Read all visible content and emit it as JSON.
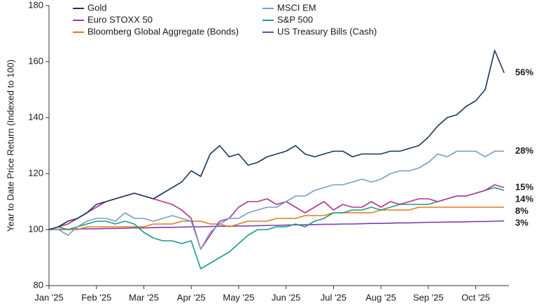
{
  "chart_data": {
    "type": "line",
    "y_label": "Year to Date Price Return (Indexed to 100)",
    "x": [
      0,
      0.2,
      0.4,
      0.6,
      0.8,
      1,
      1.2,
      1.4,
      1.6,
      1.8,
      2,
      2.2,
      2.4,
      2.6,
      2.8,
      3,
      3.2,
      3.4,
      3.6,
      3.8,
      4,
      4.2,
      4.4,
      4.6,
      4.8,
      5,
      5.2,
      5.4,
      5.6,
      5.8,
      6,
      6.2,
      6.4,
      6.6,
      6.8,
      7,
      7.2,
      7.4,
      7.6,
      7.8,
      8,
      8.2,
      8.4,
      8.6,
      8.8,
      9,
      9.2,
      9.4,
      9.6
    ],
    "xlim": [
      0,
      9.7
    ],
    "xticks": [
      {
        "value": 0,
        "label": "Jan '25"
      },
      {
        "value": 1,
        "label": "Feb '25"
      },
      {
        "value": 2,
        "label": "Mar '25"
      },
      {
        "value": 3,
        "label": "Apr '25"
      },
      {
        "value": 4,
        "label": "May '25"
      },
      {
        "value": 5,
        "label": "Jun '25"
      },
      {
        "value": 6,
        "label": "Jul '25"
      },
      {
        "value": 7,
        "label": "Aug '25"
      },
      {
        "value": 8,
        "label": "Sep '25"
      },
      {
        "value": 9,
        "label": "Oct '25"
      }
    ],
    "ylim": [
      80,
      180
    ],
    "yticks": [
      80,
      100,
      120,
      140,
      160,
      180
    ],
    "grid": false,
    "legend": "top",
    "series": [
      {
        "name": "Gold",
        "color": "#1b365d",
        "end_label": "56%",
        "values": [
          100,
          101,
          103,
          104,
          106,
          109,
          110,
          111,
          112,
          113,
          112,
          111,
          113,
          115,
          117,
          121,
          119,
          127,
          130,
          126,
          127,
          123,
          124,
          126,
          127,
          128,
          130,
          127,
          126,
          127,
          128,
          128,
          126,
          127,
          127,
          127,
          128,
          128,
          129,
          130,
          133,
          137,
          140,
          141,
          144,
          146,
          150,
          164,
          156
        ]
      },
      {
        "name": "MSCI EM",
        "color": "#7b9cc6",
        "end_label": "28%",
        "values": [
          100,
          100,
          98,
          101,
          103,
          104,
          104,
          103,
          106,
          104,
          104,
          103,
          104,
          105,
          104,
          103,
          93,
          99,
          102,
          104,
          104,
          106,
          107,
          108,
          108,
          110,
          112,
          112,
          114,
          115,
          116,
          116,
          117,
          118,
          117,
          118,
          120,
          121,
          121,
          122,
          124,
          127,
          126,
          128,
          128,
          128,
          126,
          128,
          128
        ]
      },
      {
        "name": "Euro STOXX 50",
        "color": "#b0358f",
        "end_label": "15%",
        "values": [
          100,
          101,
          102,
          104,
          106,
          108,
          110,
          111,
          112,
          113,
          112,
          111,
          110,
          109,
          107,
          104,
          93,
          98,
          103,
          104,
          108,
          110,
          110,
          111,
          109,
          110,
          108,
          106,
          108,
          110,
          107,
          109,
          108,
          108,
          110,
          108,
          110,
          109,
          110,
          111,
          111,
          110,
          111,
          112,
          112,
          113,
          114,
          116,
          115
        ]
      },
      {
        "name": "S&P 500",
        "color": "#1a9a88",
        "end_label": "14%",
        "values": [
          100,
          101,
          100,
          101,
          102,
          103,
          103,
          102,
          103,
          102,
          99,
          97,
          96,
          96,
          95,
          96,
          86,
          88,
          90,
          92,
          95,
          98,
          100,
          100,
          101,
          101,
          102,
          101,
          103,
          104,
          106,
          106,
          107,
          107,
          108,
          107,
          108,
          109,
          109,
          109,
          109,
          110,
          111,
          112,
          112,
          113,
          114,
          115,
          114
        ]
      },
      {
        "name": "Bloomberg Global Aggregate (Bonds)",
        "color": "#e07b1a",
        "end_label": "8%",
        "values": [
          100,
          100,
          100,
          100,
          101,
          101,
          101,
          101,
          101,
          101,
          101,
          102,
          102,
          102,
          103,
          103,
          103,
          102,
          102,
          101,
          102,
          103,
          103,
          103,
          104,
          104,
          104,
          105,
          105,
          105,
          106,
          106,
          106,
          106,
          106,
          107,
          107,
          107,
          107,
          108,
          108,
          108,
          108,
          108,
          108,
          108,
          108,
          108,
          108
        ]
      },
      {
        "name": "US Treasury Bills (Cash)",
        "color": "#7a3fb0",
        "end_label": "3%",
        "values": [
          100,
          100.1,
          100.1,
          100.2,
          100.3,
          100.3,
          100.4,
          100.4,
          100.5,
          100.6,
          100.6,
          100.7,
          100.8,
          100.8,
          100.9,
          101,
          101,
          101.1,
          101.2,
          101.2,
          101.3,
          101.3,
          101.4,
          101.5,
          101.5,
          101.6,
          101.7,
          101.7,
          101.8,
          101.9,
          101.9,
          102,
          102,
          102.1,
          102.2,
          102.2,
          102.3,
          102.4,
          102.4,
          102.5,
          102.6,
          102.6,
          102.7,
          102.7,
          102.8,
          102.9,
          102.9,
          103,
          103.1
        ]
      }
    ]
  }
}
